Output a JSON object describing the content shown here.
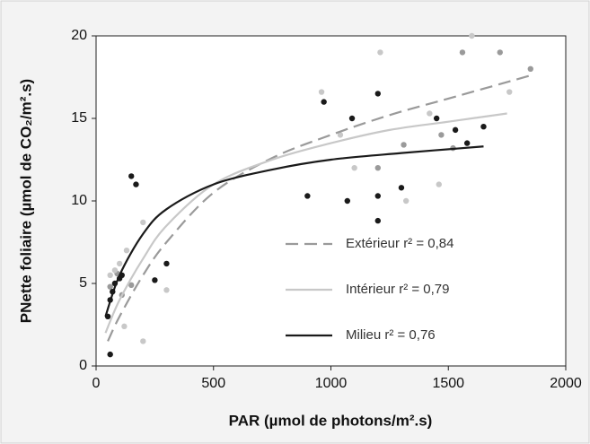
{
  "chart_data": {
    "type": "scatter",
    "xlabel": "PAR (µmol de photons/m².s)",
    "ylabel": "PNette foliaire (µmol de CO₂/m².s)",
    "xlim": [
      0,
      2000
    ],
    "xticks": [
      0,
      500,
      1000,
      1500,
      2000
    ],
    "ylim": [
      0,
      20
    ],
    "yticks": [
      0,
      5,
      10,
      15,
      20
    ],
    "grid": false,
    "series": [
      {
        "name": "Extérieur r² = 0,84",
        "color": "#9a9a9a",
        "dash": true,
        "curve": {
          "x": [
            50,
            100,
            200,
            300,
            500,
            750,
            1000,
            1250,
            1500,
            1850
          ],
          "values": [
            1.5,
            3,
            5.5,
            7.5,
            10.5,
            12.6,
            14,
            15.2,
            16.2,
            17.6
          ]
        },
        "points": {
          "x": [
            1850,
            1560,
            1720,
            1470,
            1310,
            1200,
            1520,
            60,
            90,
            110,
            150
          ],
          "values": [
            18,
            19,
            19,
            14,
            13.4,
            12,
            13.2,
            4.8,
            5.6,
            4.3,
            4.9
          ]
        }
      },
      {
        "name": "Intérieur r² = 0,79",
        "color": "#c8c8c8",
        "dash": false,
        "curve": {
          "x": [
            40,
            100,
            200,
            300,
            500,
            750,
            1000,
            1250,
            1500,
            1750
          ],
          "values": [
            2,
            4,
            6.5,
            8.5,
            11,
            12.5,
            13.5,
            14.3,
            14.8,
            15.3
          ]
        },
        "points": {
          "x": [
            1210,
            1600,
            960,
            1100,
            1040,
            1420,
            1460,
            1320,
            1760,
            200,
            130,
            300,
            200,
            120,
            60,
            80,
            100
          ],
          "values": [
            19,
            20,
            16.6,
            12,
            14,
            15.3,
            11,
            10,
            16.6,
            8.7,
            7,
            4.6,
            1.5,
            2.4,
            5.5,
            5.8,
            6.2
          ]
        }
      },
      {
        "name": "Milieu r² = 0,76",
        "color": "#1a1a1a",
        "dash": false,
        "curve": {
          "x": [
            40,
            100,
            200,
            300,
            500,
            750,
            1000,
            1300,
            1650
          ],
          "values": [
            3,
            5.5,
            8,
            9.5,
            11,
            11.9,
            12.5,
            12.9,
            13.3
          ]
        },
        "points": {
          "x": [
            60,
            50,
            60,
            70,
            80,
            100,
            110,
            150,
            170,
            250,
            300,
            900,
            970,
            1070,
            1090,
            1200,
            1200,
            1200,
            1300,
            1450,
            1530,
            1580,
            1650
          ],
          "values": [
            0.7,
            3,
            4,
            4.5,
            5,
            5.3,
            5.5,
            11.5,
            11,
            5.2,
            6.2,
            10.3,
            16,
            10,
            15,
            16.5,
            10.3,
            8.8,
            10.8,
            15,
            14.3,
            13.5,
            14.5
          ]
        }
      }
    ]
  }
}
